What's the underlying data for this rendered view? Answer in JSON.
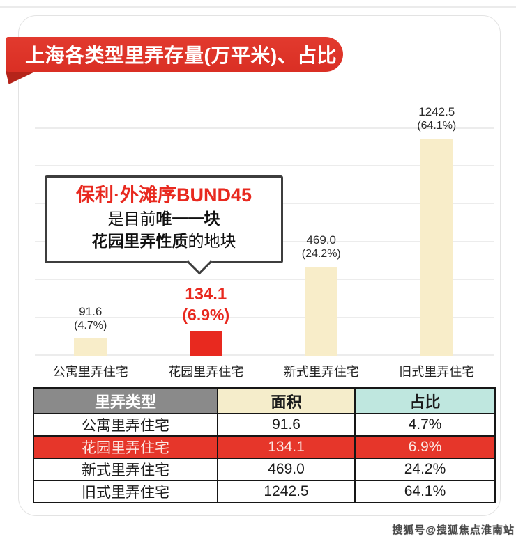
{
  "header": {
    "title": "上海各类型里弄存量(万平米)、占比"
  },
  "callout": {
    "line1": "保利·外滩序BUND45",
    "line2_prefix": "是目前",
    "line2_bold": "唯一一块",
    "line3_bold": "花园里弄性质",
    "line3_suffix": "的地块"
  },
  "chart_data": {
    "type": "bar",
    "title": "上海各类型里弄存量(万平米)、占比",
    "categories": [
      "公寓里弄住宅",
      "花园里弄住宅",
      "新式里弄住宅",
      "旧式里弄住宅"
    ],
    "values": [
      91.6,
      134.1,
      469.0,
      1242.5
    ],
    "value_labels": [
      "91.6",
      "134.1",
      "469.0",
      "1242.5"
    ],
    "pct_labels": [
      "(4.7%)",
      "(6.9%)",
      "(24.2%)",
      "(64.1%)"
    ],
    "percentages": [
      4.7,
      6.9,
      24.2,
      64.1
    ],
    "unit": "万平米",
    "xlabel": "",
    "ylabel": "",
    "ylim": [
      0,
      1300
    ],
    "grid": true,
    "grid_step": 200,
    "grid_max": 1200,
    "legend": false,
    "highlight_index": 1
  },
  "table": {
    "headers": [
      "里弄类型",
      "面积",
      "占比"
    ],
    "rows": [
      [
        "公寓里弄住宅",
        "91.6",
        "4.7%"
      ],
      [
        "花园里弄住宅",
        "134.1",
        "6.9%"
      ],
      [
        "新式里弄住宅",
        "469.0",
        "24.2%"
      ],
      [
        "旧式里弄住宅",
        "1242.5",
        "64.1%"
      ]
    ],
    "highlight_row": 1
  },
  "colors": {
    "banner_red": "#E23A2E",
    "fold_red": "#B5241A",
    "accent_red": "#E8291F",
    "bar_cream": "#F8EDC9",
    "grid_gray": "#ECECEC",
    "table_header_gray": "#8A8A8A",
    "table_header_cream": "#F5EDCB",
    "table_header_teal": "#BFE7DF",
    "table_highlight_red": "#E6362A"
  },
  "watermark": "搜狐号@搜狐焦点淮南站"
}
